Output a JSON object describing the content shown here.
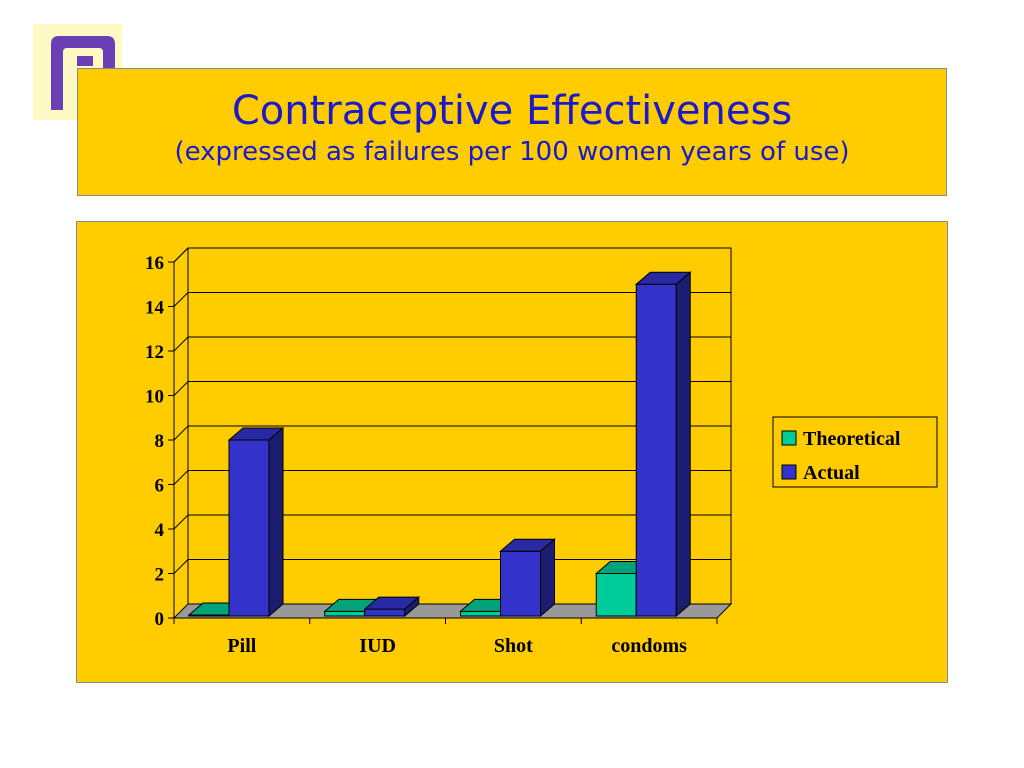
{
  "slide": {
    "title": "Contraceptive Effectiveness",
    "subtitle": "(expressed as failures per 100 women years of use)"
  },
  "logo": {
    "icon": "planned-parenthood-logo-icon",
    "color": "#6a3fb5"
  },
  "colors": {
    "background": "#ffcc00",
    "theoretical": "#00cc99",
    "actual": "#3333cc",
    "floor": "#999999"
  },
  "chart_data": {
    "type": "bar",
    "categories": [
      "Pill",
      "IUD",
      "Shot",
      "condoms"
    ],
    "series": [
      {
        "name": "Theoretical",
        "values": [
          0.1,
          0.3,
          0.3,
          2
        ]
      },
      {
        "name": "Actual",
        "values": [
          8,
          0.4,
          3,
          15
        ]
      }
    ],
    "ylim": [
      0,
      16
    ],
    "yticks": [
      "0",
      "2",
      "4",
      "6",
      "8",
      "10",
      "12",
      "14",
      "16"
    ],
    "grid": true,
    "legend": "right",
    "style": "3d-clustered-column"
  }
}
